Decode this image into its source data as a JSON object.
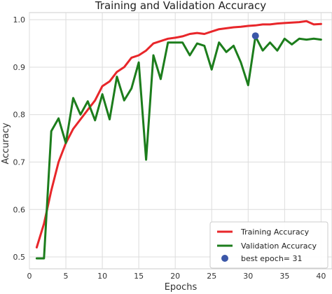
{
  "chart_data": {
    "type": "line",
    "title": "Training and Validation Accuracy",
    "xlabel": "Epochs",
    "ylabel": "Accuracy",
    "xlim": [
      0,
      41.5
    ],
    "ylim": [
      0.475,
      1.015
    ],
    "xticks": [
      0,
      5,
      10,
      15,
      20,
      25,
      30,
      35,
      40
    ],
    "yticks": [
      0.5,
      0.6,
      0.7,
      0.8,
      0.9,
      1.0
    ],
    "xtick_labels": [
      "0",
      "5",
      "10",
      "15",
      "20",
      "25",
      "30",
      "35",
      "40"
    ],
    "ytick_labels": [
      "0.5",
      "0.6",
      "0.7",
      "0.8",
      "0.9",
      "1.0"
    ],
    "grid": true,
    "legend_position": "bottom-right",
    "x": [
      1,
      2,
      3,
      4,
      5,
      6,
      7,
      8,
      9,
      10,
      11,
      12,
      13,
      14,
      15,
      16,
      17,
      18,
      19,
      20,
      21,
      22,
      23,
      24,
      25,
      26,
      27,
      28,
      29,
      30,
      31,
      32,
      33,
      34,
      35,
      36,
      37,
      38,
      39,
      40
    ],
    "series": [
      {
        "name": "Training Accuracy",
        "color": "#e8262a",
        "values": [
          0.52,
          0.57,
          0.64,
          0.7,
          0.74,
          0.77,
          0.79,
          0.81,
          0.83,
          0.86,
          0.87,
          0.89,
          0.9,
          0.92,
          0.925,
          0.935,
          0.95,
          0.955,
          0.96,
          0.962,
          0.965,
          0.97,
          0.972,
          0.97,
          0.975,
          0.98,
          0.982,
          0.984,
          0.985,
          0.987,
          0.988,
          0.99,
          0.99,
          0.992,
          0.993,
          0.994,
          0.995,
          0.997,
          0.99,
          0.991
        ]
      },
      {
        "name": "Validation Accuracy",
        "color": "#1c7d1c",
        "values": [
          0.497,
          0.497,
          0.765,
          0.792,
          0.74,
          0.835,
          0.8,
          0.828,
          0.788,
          0.843,
          0.79,
          0.88,
          0.83,
          0.855,
          0.91,
          0.705,
          0.925,
          0.875,
          0.952,
          0.952,
          0.952,
          0.925,
          0.95,
          0.945,
          0.895,
          0.952,
          0.932,
          0.945,
          0.91,
          0.862,
          0.965,
          0.935,
          0.952,
          0.935,
          0.96,
          0.948,
          0.96,
          0.958,
          0.96,
          0.958
        ]
      }
    ],
    "markers": [
      {
        "name": "best epoch= 31",
        "x": 31,
        "y": 0.966,
        "color": "#3b57a8"
      }
    ]
  }
}
